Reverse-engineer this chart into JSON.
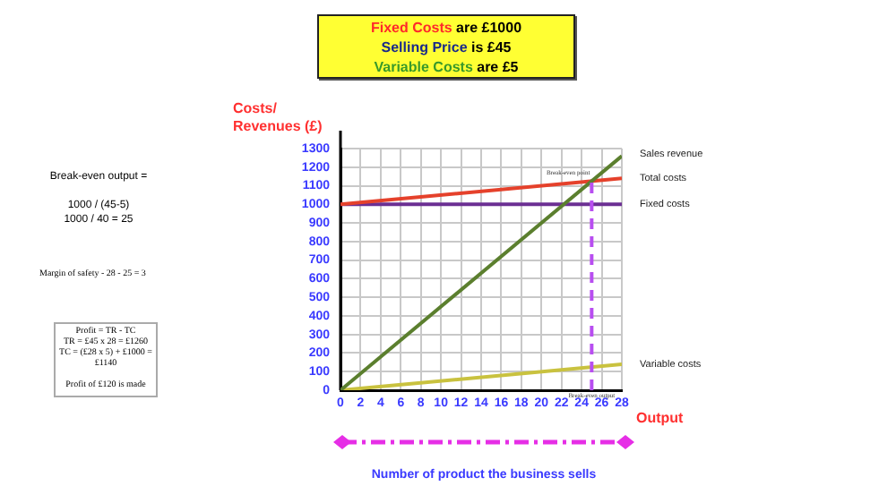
{
  "chart_data": {
    "type": "line",
    "title": "Fixed Costs are £1000",
    "subtitle": "Selling Price is £45\nVariable Costs are £5",
    "xlabel": "Output",
    "ylabel": "Costs/\nRevenues (£)",
    "x": [
      0,
      28
    ],
    "series": [
      {
        "name": "Sales revenue",
        "color": "#5b7f2e",
        "values": [
          0,
          1260
        ]
      },
      {
        "name": "Total costs",
        "color": "#e5412b",
        "values": [
          1000,
          1140
        ]
      },
      {
        "name": "Fixed costs",
        "color": "#6b2f93",
        "values": [
          1000,
          1000
        ]
      },
      {
        "name": "Variable costs",
        "color": "#c9c23f",
        "values": [
          0,
          140
        ]
      }
    ],
    "xlim": [
      0,
      28
    ],
    "xticks": [
      0,
      2,
      4,
      6,
      8,
      10,
      12,
      14,
      16,
      18,
      20,
      22,
      24,
      26,
      28
    ],
    "ylim": [
      0,
      1300
    ],
    "yticks": [
      0,
      100,
      200,
      300,
      400,
      500,
      600,
      700,
      800,
      900,
      1000,
      1100,
      1200,
      1300
    ],
    "ref_lines": [
      {
        "axis": "x",
        "value": 25,
        "label": "Break-even output",
        "color": "#b84ef0",
        "line_style": "dashed"
      }
    ],
    "annotations": [
      {
        "text": "Break-even point",
        "x": 25,
        "y": 1125
      },
      "Break-even output =\n\n1000 / (45-5)\n1000 / 40 = 25",
      "Margin of safety - 28 - 25 = 3",
      "Profit  = TR - TC\nTR = £45 x 28 = £1260\nTC = (£28 x 5) + £1000 = £1140\n\nProfit of £120 is made",
      "Number of product the business sells"
    ],
    "grid": true,
    "legend": false,
    "marker": "none",
    "line_style": "solid"
  }
}
